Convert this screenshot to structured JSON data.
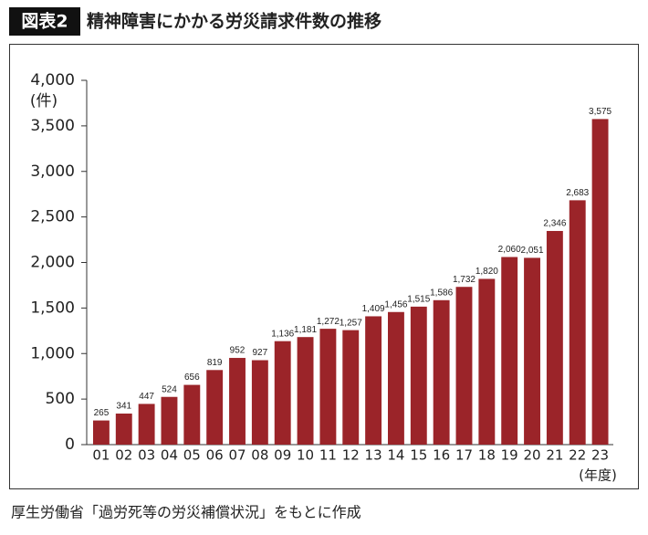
{
  "badge": "図表2",
  "source": "厚生労働省「過労死等の労災補償状況」をもとに作成",
  "chart_data": {
    "type": "bar",
    "title": "精神障害にかかる労災請求件数の推移",
    "y_unit": "(件)",
    "x_unit": "(年度)",
    "categories": [
      "01",
      "02",
      "03",
      "04",
      "05",
      "06",
      "07",
      "08",
      "09",
      "10",
      "11",
      "12",
      "13",
      "14",
      "15",
      "16",
      "17",
      "18",
      "19",
      "20",
      "21",
      "22",
      "23"
    ],
    "values": [
      265,
      341,
      447,
      524,
      656,
      819,
      952,
      927,
      1136,
      1181,
      1272,
      1257,
      1409,
      1456,
      1515,
      1586,
      1732,
      1820,
      2060,
      2051,
      2346,
      2683,
      3575
    ],
    "value_labels": [
      "265",
      "341",
      "447",
      "524",
      "656",
      "819",
      "952",
      "927",
      "1,136",
      "1,181",
      "1,272",
      "1,257",
      "1,409",
      "1,456",
      "1,515",
      "1,586",
      "1,732",
      "1,820",
      "2,060",
      "2,051",
      "2,346",
      "2,683",
      "3,575"
    ],
    "color": "#9b2429",
    "ylim": [
      0,
      4000
    ],
    "yticks": [
      0,
      500,
      {
        "value": 1000,
        "label": "1,000"
      },
      {
        "value": 1500,
        "label": "1,500"
      },
      {
        "value": 2000,
        "label": "2,000"
      },
      {
        "value": 2500,
        "label": "2,500"
      },
      {
        "value": 3000,
        "label": "3,000"
      },
      {
        "value": 3500,
        "label": "3,500"
      },
      {
        "value": 4000,
        "label": "4,000"
      }
    ],
    "grid": false
  }
}
